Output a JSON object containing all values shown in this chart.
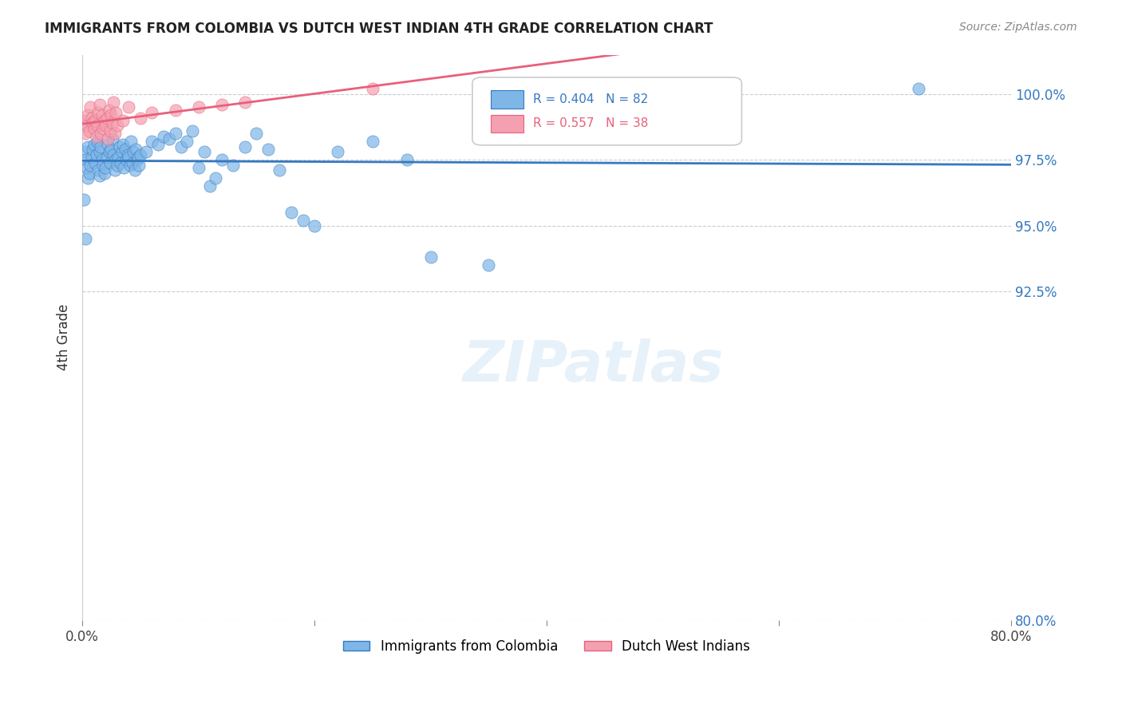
{
  "title": "IMMIGRANTS FROM COLOMBIA VS DUTCH WEST INDIAN 4TH GRADE CORRELATION CHART",
  "source": "Source: ZipAtlas.com",
  "xlabel": "",
  "ylabel": "4th Grade",
  "xlim": [
    0.0,
    80.0
  ],
  "ylim": [
    80.0,
    101.5
  ],
  "xticks": [
    0.0,
    20.0,
    40.0,
    60.0,
    80.0
  ],
  "xticklabels": [
    "0.0%",
    "",
    "",
    "",
    "80.0%"
  ],
  "yticks_right": [
    80.0,
    92.5,
    95.0,
    97.5,
    100.0
  ],
  "ytick_right_labels": [
    "80.0%",
    "92.5%",
    "95.0%",
    "97.5%",
    "100.0%"
  ],
  "blue_R": 0.404,
  "blue_N": 82,
  "pink_R": 0.557,
  "pink_N": 38,
  "blue_color": "#7EB6E8",
  "pink_color": "#F4A0B0",
  "blue_line_color": "#3579C0",
  "pink_line_color": "#E8607A",
  "legend_blue_label": "Immigrants from Colombia",
  "legend_pink_label": "Dutch West Indians",
  "watermark": "ZIPatlas",
  "blue_scatter_x": [
    0.2,
    0.3,
    0.4,
    0.5,
    0.5,
    0.6,
    0.7,
    0.8,
    0.9,
    1.0,
    1.1,
    1.2,
    1.3,
    1.4,
    1.5,
    1.5,
    1.6,
    1.7,
    1.8,
    1.9,
    2.0,
    2.1,
    2.2,
    2.3,
    2.4,
    2.5,
    2.6,
    2.7,
    2.8,
    2.9,
    3.0,
    3.1,
    3.2,
    3.3,
    3.4,
    3.5,
    3.6,
    3.7,
    3.8,
    3.9,
    4.0,
    4.1,
    4.2,
    4.3,
    4.4,
    4.5,
    4.6,
    4.7,
    4.8,
    4.9,
    5.0,
    5.5,
    6.0,
    6.5,
    7.0,
    7.5,
    8.0,
    8.5,
    9.0,
    9.5,
    10.0,
    10.5,
    11.0,
    11.5,
    12.0,
    13.0,
    14.0,
    15.0,
    16.0,
    17.0,
    18.0,
    19.0,
    20.0,
    22.0,
    25.0,
    28.0,
    30.0,
    35.0,
    40.0,
    72.0,
    0.15,
    0.25
  ],
  "blue_scatter_y": [
    97.8,
    97.5,
    97.2,
    98.0,
    96.8,
    97.0,
    97.3,
    97.6,
    97.9,
    98.1,
    97.4,
    97.7,
    98.2,
    97.1,
    96.9,
    97.8,
    98.0,
    97.5,
    97.3,
    97.0,
    97.2,
    97.6,
    98.1,
    97.8,
    97.4,
    97.9,
    98.3,
    97.7,
    97.1,
    97.5,
    97.3,
    97.6,
    98.0,
    97.4,
    97.8,
    98.1,
    97.2,
    97.9,
    97.5,
    97.7,
    97.6,
    97.3,
    98.2,
    97.4,
    97.8,
    97.1,
    97.9,
    97.5,
    97.6,
    97.3,
    97.7,
    97.8,
    98.2,
    98.1,
    98.4,
    98.3,
    98.5,
    98.0,
    98.2,
    98.6,
    97.2,
    97.8,
    96.5,
    96.8,
    97.5,
    97.3,
    98.0,
    98.5,
    97.9,
    97.1,
    95.5,
    95.2,
    95.0,
    97.8,
    98.2,
    97.5,
    93.8,
    93.5,
    98.8,
    100.2,
    96.0,
    94.5
  ],
  "pink_scatter_x": [
    0.2,
    0.3,
    0.4,
    0.5,
    0.6,
    0.7,
    0.8,
    0.9,
    1.0,
    1.1,
    1.2,
    1.3,
    1.4,
    1.5,
    1.6,
    1.7,
    1.8,
    1.9,
    2.0,
    2.1,
    2.2,
    2.3,
    2.4,
    2.5,
    2.6,
    2.7,
    2.8,
    2.9,
    3.0,
    3.5,
    4.0,
    5.0,
    6.0,
    8.0,
    10.0,
    12.0,
    14.0,
    25.0
  ],
  "pink_scatter_y": [
    99.0,
    98.5,
    98.8,
    99.2,
    98.6,
    99.5,
    99.1,
    98.9,
    98.7,
    99.0,
    98.4,
    98.8,
    99.3,
    99.6,
    98.5,
    99.2,
    98.7,
    99.0,
    98.8,
    99.1,
    98.3,
    99.4,
    98.6,
    99.2,
    98.9,
    99.7,
    98.5,
    99.3,
    98.8,
    99.0,
    99.5,
    99.1,
    99.3,
    99.4,
    99.5,
    99.6,
    99.7,
    100.2
  ]
}
